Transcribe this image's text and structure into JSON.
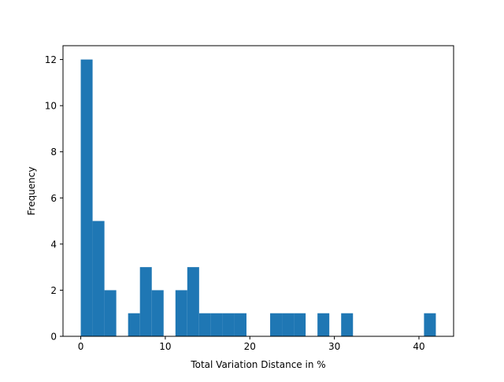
{
  "chart_data": {
    "type": "bar",
    "kind": "histogram",
    "title": "",
    "xlabel": "Total Variation Distance in %",
    "ylabel": "Frequency",
    "xlim": [
      -2.1,
      44.1
    ],
    "ylim": [
      0,
      12.6
    ],
    "xticks": [
      0,
      10,
      20,
      30,
      40
    ],
    "yticks": [
      0,
      2,
      4,
      6,
      8,
      10,
      12
    ],
    "bar_color": "#1f77b4",
    "grid": false,
    "bins": [
      {
        "x0": 0.0,
        "x1": 1.4,
        "count": 12
      },
      {
        "x0": 1.4,
        "x1": 2.8,
        "count": 5
      },
      {
        "x0": 2.8,
        "x1": 4.2,
        "count": 2
      },
      {
        "x0": 5.6,
        "x1": 7.0,
        "count": 1
      },
      {
        "x0": 7.0,
        "x1": 8.4,
        "count": 3
      },
      {
        "x0": 8.4,
        "x1": 9.8,
        "count": 2
      },
      {
        "x0": 11.2,
        "x1": 12.6,
        "count": 2
      },
      {
        "x0": 12.6,
        "x1": 14.0,
        "count": 3
      },
      {
        "x0": 14.0,
        "x1": 15.4,
        "count": 1
      },
      {
        "x0": 15.4,
        "x1": 16.8,
        "count": 1
      },
      {
        "x0": 16.8,
        "x1": 18.2,
        "count": 1
      },
      {
        "x0": 18.2,
        "x1": 19.6,
        "count": 1
      },
      {
        "x0": 22.4,
        "x1": 23.8,
        "count": 1
      },
      {
        "x0": 23.8,
        "x1": 25.2,
        "count": 1
      },
      {
        "x0": 25.2,
        "x1": 26.6,
        "count": 1
      },
      {
        "x0": 28.0,
        "x1": 29.4,
        "count": 1
      },
      {
        "x0": 30.8,
        "x1": 32.2,
        "count": 1
      },
      {
        "x0": 40.6,
        "x1": 42.0,
        "count": 1
      }
    ]
  }
}
